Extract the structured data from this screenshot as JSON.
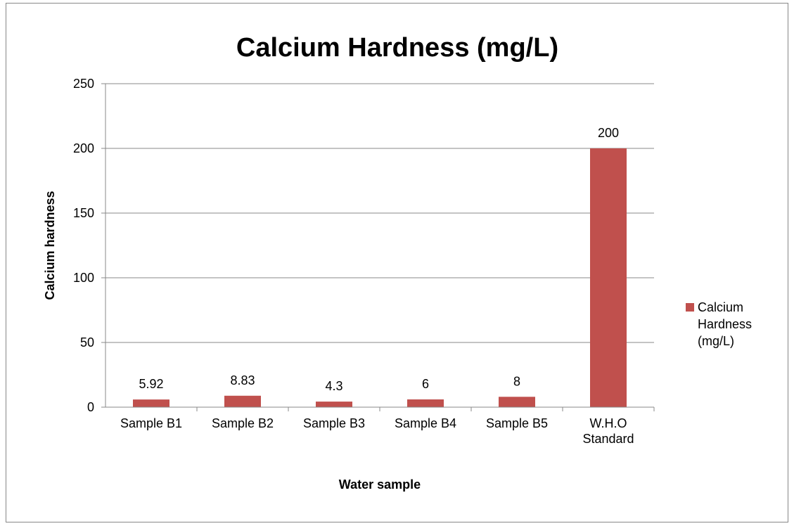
{
  "chart_data": {
    "type": "bar",
    "title": "Calcium Hardness (mg/L)",
    "x_label": "Water sample",
    "y_label": "Calcium hardness",
    "categories": [
      "Sample B1",
      "Sample B2",
      "Sample B3",
      "Sample B4",
      "Sample B5",
      "W.H.O Standard"
    ],
    "series": [
      {
        "name": "Calcium Hardness (mg/L)",
        "color": "#c0504d",
        "values": [
          5.92,
          8.83,
          4.3,
          6,
          8,
          200
        ]
      }
    ],
    "ylim": [
      0,
      250
    ],
    "yticks": [
      0,
      50,
      100,
      150,
      200,
      250
    ],
    "grid": true,
    "legend": "right"
  }
}
